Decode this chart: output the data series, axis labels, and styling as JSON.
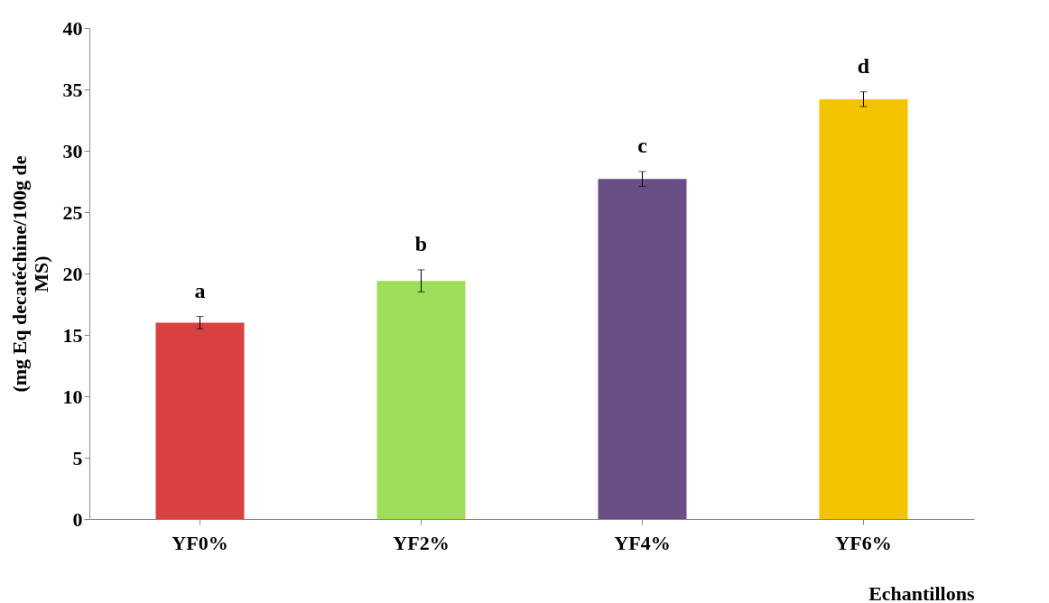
{
  "chart_data": {
    "type": "bar",
    "ylabel": "(mg Eq decatéchine/100g de MS)",
    "xlabel": "Echantillons",
    "categories": [
      "YF0%",
      "YF2%",
      "YF4%",
      "YF6%"
    ],
    "values": [
      16.0,
      19.4,
      27.7,
      34.2
    ],
    "errors": [
      0.5,
      0.9,
      0.6,
      0.6
    ],
    "colors": [
      "#d94040",
      "#9ede5a",
      "#6a4e86",
      "#f5c400"
    ],
    "ylim": [
      0,
      40
    ],
    "yticks": [
      0,
      5,
      10,
      15,
      20,
      25,
      30,
      35,
      40
    ],
    "grid": false,
    "legend": false,
    "annotations": [
      {
        "text": "a",
        "x": "YF0%",
        "y": 16.5
      },
      {
        "text": "b",
        "x": "YF2%",
        "y": 20.3
      },
      {
        "text": "c",
        "x": "YF4%",
        "y": 28.3
      },
      {
        "text": "d",
        "x": "YF6%",
        "y": 34.8
      }
    ]
  }
}
